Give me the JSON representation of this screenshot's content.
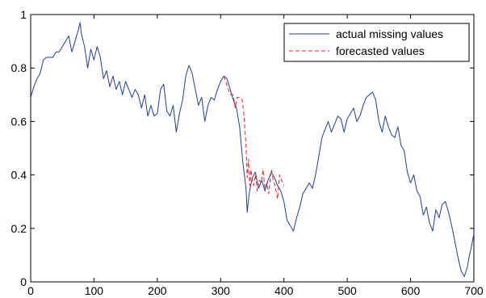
{
  "chart_data": {
    "type": "line",
    "title": "",
    "xlabel": "",
    "ylabel": "",
    "xlim": [
      0,
      700
    ],
    "ylim": [
      0,
      1
    ],
    "x_ticks": [
      0,
      100,
      200,
      300,
      400,
      500,
      600,
      700
    ],
    "y_ticks": [
      0,
      0.2,
      0.4,
      0.6,
      0.8,
      1
    ],
    "x_tick_labels": [
      "0",
      "100",
      "200",
      "300",
      "400",
      "500",
      "600",
      "700"
    ],
    "y_tick_labels": [
      "0",
      "0.2",
      "0.4",
      "0.6",
      "0.8",
      "1"
    ],
    "grid": false,
    "legend_position": "top-right",
    "series": [
      {
        "name": "actual missing values",
        "color": "#1f3f9a",
        "style": "solid",
        "x": [
          0,
          5,
          10,
          15,
          20,
          25,
          30,
          35,
          40,
          45,
          50,
          55,
          60,
          65,
          70,
          75,
          78,
          80,
          85,
          90,
          95,
          100,
          105,
          110,
          115,
          120,
          125,
          130,
          135,
          140,
          145,
          150,
          155,
          160,
          165,
          170,
          175,
          180,
          185,
          190,
          195,
          200,
          205,
          210,
          215,
          220,
          225,
          230,
          235,
          240,
          245,
          250,
          255,
          260,
          265,
          270,
          275,
          280,
          285,
          290,
          295,
          300,
          305,
          310,
          315,
          320,
          325,
          330,
          335,
          340,
          342,
          345,
          350,
          355,
          360,
          365,
          370,
          375,
          380,
          385,
          390,
          395,
          400,
          405,
          410,
          415,
          420,
          425,
          430,
          435,
          440,
          445,
          450,
          455,
          460,
          465,
          470,
          475,
          480,
          485,
          490,
          495,
          500,
          505,
          510,
          515,
          520,
          525,
          530,
          535,
          540,
          545,
          550,
          555,
          560,
          565,
          570,
          575,
          580,
          585,
          590,
          595,
          600,
          605,
          610,
          615,
          620,
          625,
          630,
          635,
          640,
          645,
          650,
          655,
          660,
          665,
          670,
          675,
          680,
          685,
          690,
          693,
          695,
          700
        ],
        "y": [
          0.69,
          0.73,
          0.76,
          0.78,
          0.83,
          0.84,
          0.84,
          0.84,
          0.86,
          0.86,
          0.88,
          0.9,
          0.92,
          0.86,
          0.9,
          0.94,
          0.97,
          0.93,
          0.88,
          0.8,
          0.87,
          0.83,
          0.88,
          0.84,
          0.76,
          0.79,
          0.73,
          0.77,
          0.72,
          0.75,
          0.7,
          0.75,
          0.72,
          0.69,
          0.72,
          0.7,
          0.65,
          0.7,
          0.62,
          0.66,
          0.62,
          0.63,
          0.72,
          0.74,
          0.64,
          0.62,
          0.66,
          0.56,
          0.63,
          0.68,
          0.77,
          0.81,
          0.78,
          0.72,
          0.66,
          0.69,
          0.6,
          0.66,
          0.69,
          0.68,
          0.72,
          0.75,
          0.77,
          0.76,
          0.72,
          0.68,
          0.65,
          0.58,
          0.45,
          0.35,
          0.26,
          0.33,
          0.39,
          0.41,
          0.35,
          0.38,
          0.34,
          0.38,
          0.41,
          0.39,
          0.36,
          0.34,
          0.3,
          0.23,
          0.21,
          0.19,
          0.24,
          0.28,
          0.33,
          0.35,
          0.37,
          0.35,
          0.4,
          0.47,
          0.54,
          0.57,
          0.6,
          0.56,
          0.59,
          0.62,
          0.61,
          0.56,
          0.61,
          0.63,
          0.65,
          0.6,
          0.62,
          0.66,
          0.69,
          0.7,
          0.71,
          0.68,
          0.6,
          0.56,
          0.62,
          0.58,
          0.55,
          0.54,
          0.58,
          0.51,
          0.49,
          0.41,
          0.37,
          0.4,
          0.34,
          0.32,
          0.25,
          0.28,
          0.22,
          0.19,
          0.27,
          0.24,
          0.29,
          0.3,
          0.26,
          0.21,
          0.15,
          0.09,
          0.04,
          0.02,
          0.06,
          0.1,
          0.12,
          0.18
        ]
      },
      {
        "name": "forecasted values",
        "color": "#e8282d",
        "style": "dashed",
        "x": [
          305,
          308,
          312,
          316,
          320,
          323,
          326,
          330,
          334,
          337,
          340,
          342,
          344,
          346,
          348,
          350,
          352,
          355,
          358,
          361,
          364,
          367,
          370,
          373,
          376,
          380,
          383,
          386,
          390,
          393,
          396,
          400
        ],
        "y": [
          0.77,
          0.75,
          0.72,
          0.7,
          0.7,
          0.65,
          0.69,
          0.69,
          0.68,
          0.62,
          0.51,
          0.39,
          0.46,
          0.36,
          0.42,
          0.38,
          0.36,
          0.4,
          0.34,
          0.38,
          0.37,
          0.42,
          0.35,
          0.37,
          0.33,
          0.42,
          0.38,
          0.36,
          0.31,
          0.4,
          0.38,
          0.36
        ]
      }
    ]
  }
}
